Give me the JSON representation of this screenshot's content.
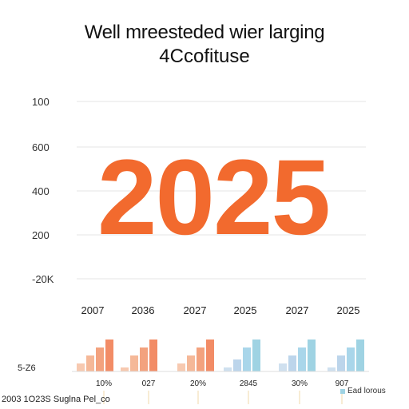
{
  "chart_data": {
    "type": "bar",
    "title": "Well mreesteded wier larging",
    "subtitle": "4Ccofituse",
    "highlight": "2025",
    "y_ticks": [
      "100",
      "600",
      "400",
      "200",
      "-20K"
    ],
    "top_x_labels": [
      "2007",
      "2036",
      "2027",
      "2025",
      "2027",
      "2025"
    ],
    "bottom_left_label": "5-Z6",
    "bottom_x_labels": [
      "10%",
      "027",
      "20%",
      "2845",
      "30%",
      "907"
    ],
    "groups": [
      {
        "values": [
          1,
          2,
          3,
          4
        ]
      },
      {
        "values": [
          0.5,
          2,
          3,
          4
        ]
      },
      {
        "values": [
          1,
          2,
          3,
          4
        ]
      },
      {
        "values": [
          0.5,
          1.5,
          3,
          4
        ]
      },
      {
        "values": [
          1,
          2,
          3,
          4
        ]
      },
      {
        "values": [
          0.5,
          2,
          3,
          4
        ]
      }
    ],
    "grid": true,
    "legend": [
      {
        "label": "Ead lorous"
      }
    ]
  },
  "footer": "2003 1O23S Suglna Pel_co",
  "colors": {
    "accent": "#f26a2e",
    "grid": "#e6e6e6",
    "warm_bars": [
      "#f7c9b0",
      "#f5b898",
      "#f3a27e",
      "#f28c66"
    ],
    "cool_bars": [
      "#cfe0ef",
      "#bcd5eb",
      "#a9d6ea",
      "#9fd3e3"
    ],
    "legend_swatch": "#9fd3e3"
  }
}
